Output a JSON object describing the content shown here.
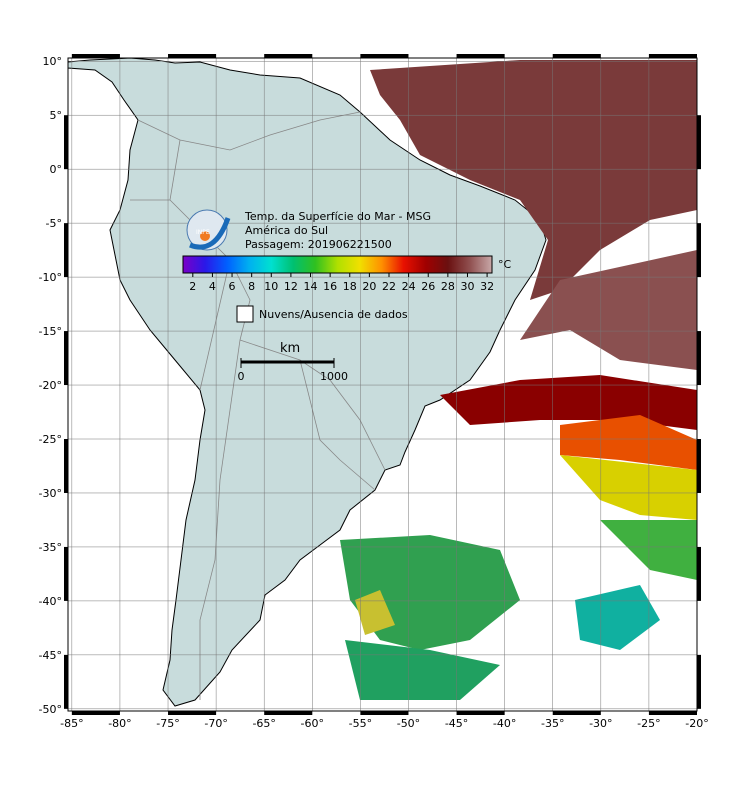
{
  "map": {
    "title_lines": [
      "Temp. da Superfície do Mar - MSG",
      "América do Sul",
      "Passagem: 201906221500"
    ],
    "logo": "INPE",
    "lonlim": [
      -85.4,
      -20
    ],
    "latlim": [
      -50.2,
      10.3
    ],
    "lon_ticks": [
      {
        "value": -85,
        "label": "-85°"
      },
      {
        "value": -80,
        "label": "-80°"
      },
      {
        "value": -75,
        "label": "-75°"
      },
      {
        "value": -70,
        "label": "-70°"
      },
      {
        "value": -65,
        "label": "-65°"
      },
      {
        "value": -60,
        "label": "-60°"
      },
      {
        "value": -55,
        "label": "-55°"
      },
      {
        "value": -50,
        "label": "-50°"
      },
      {
        "value": -45,
        "label": "-45°"
      },
      {
        "value": -40,
        "label": "-40°"
      },
      {
        "value": -35,
        "label": "-35°"
      },
      {
        "value": -30,
        "label": "-30°"
      },
      {
        "value": -25,
        "label": "-25°"
      },
      {
        "value": -20,
        "label": "-20°"
      }
    ],
    "lat_ticks": [
      {
        "value": 10,
        "label": "10°"
      },
      {
        "value": 5,
        "label": "5°"
      },
      {
        "value": 0,
        "label": "0°"
      },
      {
        "value": -5,
        "label": "-5°"
      },
      {
        "value": -10,
        "label": "-10°"
      },
      {
        "value": -15,
        "label": "-15°"
      },
      {
        "value": -20,
        "label": "-20°"
      },
      {
        "value": -25,
        "label": "-25°"
      },
      {
        "value": -30,
        "label": "-30°"
      },
      {
        "value": -35,
        "label": "-35°"
      },
      {
        "value": -40,
        "label": "-40°"
      },
      {
        "value": -45,
        "label": "-45°"
      },
      {
        "value": -50,
        "label": "-50°"
      }
    ]
  },
  "colorbar": {
    "unit": "°C",
    "lim": [
      1,
      32.5
    ],
    "ticks": [
      2,
      4,
      6,
      8,
      10,
      12,
      14,
      16,
      18,
      20,
      22,
      24,
      26,
      28,
      30,
      32
    ],
    "colors": [
      "#7a00c8",
      "#2a18e8",
      "#0060ff",
      "#00b0f0",
      "#00e0d0",
      "#00c070",
      "#30c020",
      "#b0e000",
      "#f0e000",
      "#ff9000",
      "#e81000",
      "#a00000",
      "#6a1010",
      "#905050",
      "#c8a8a8"
    ]
  },
  "legend": {
    "label": "Nuvens/Ausencia de dados"
  },
  "scale_bar": {
    "unit": "km",
    "ticks": [
      0,
      1000
    ]
  }
}
